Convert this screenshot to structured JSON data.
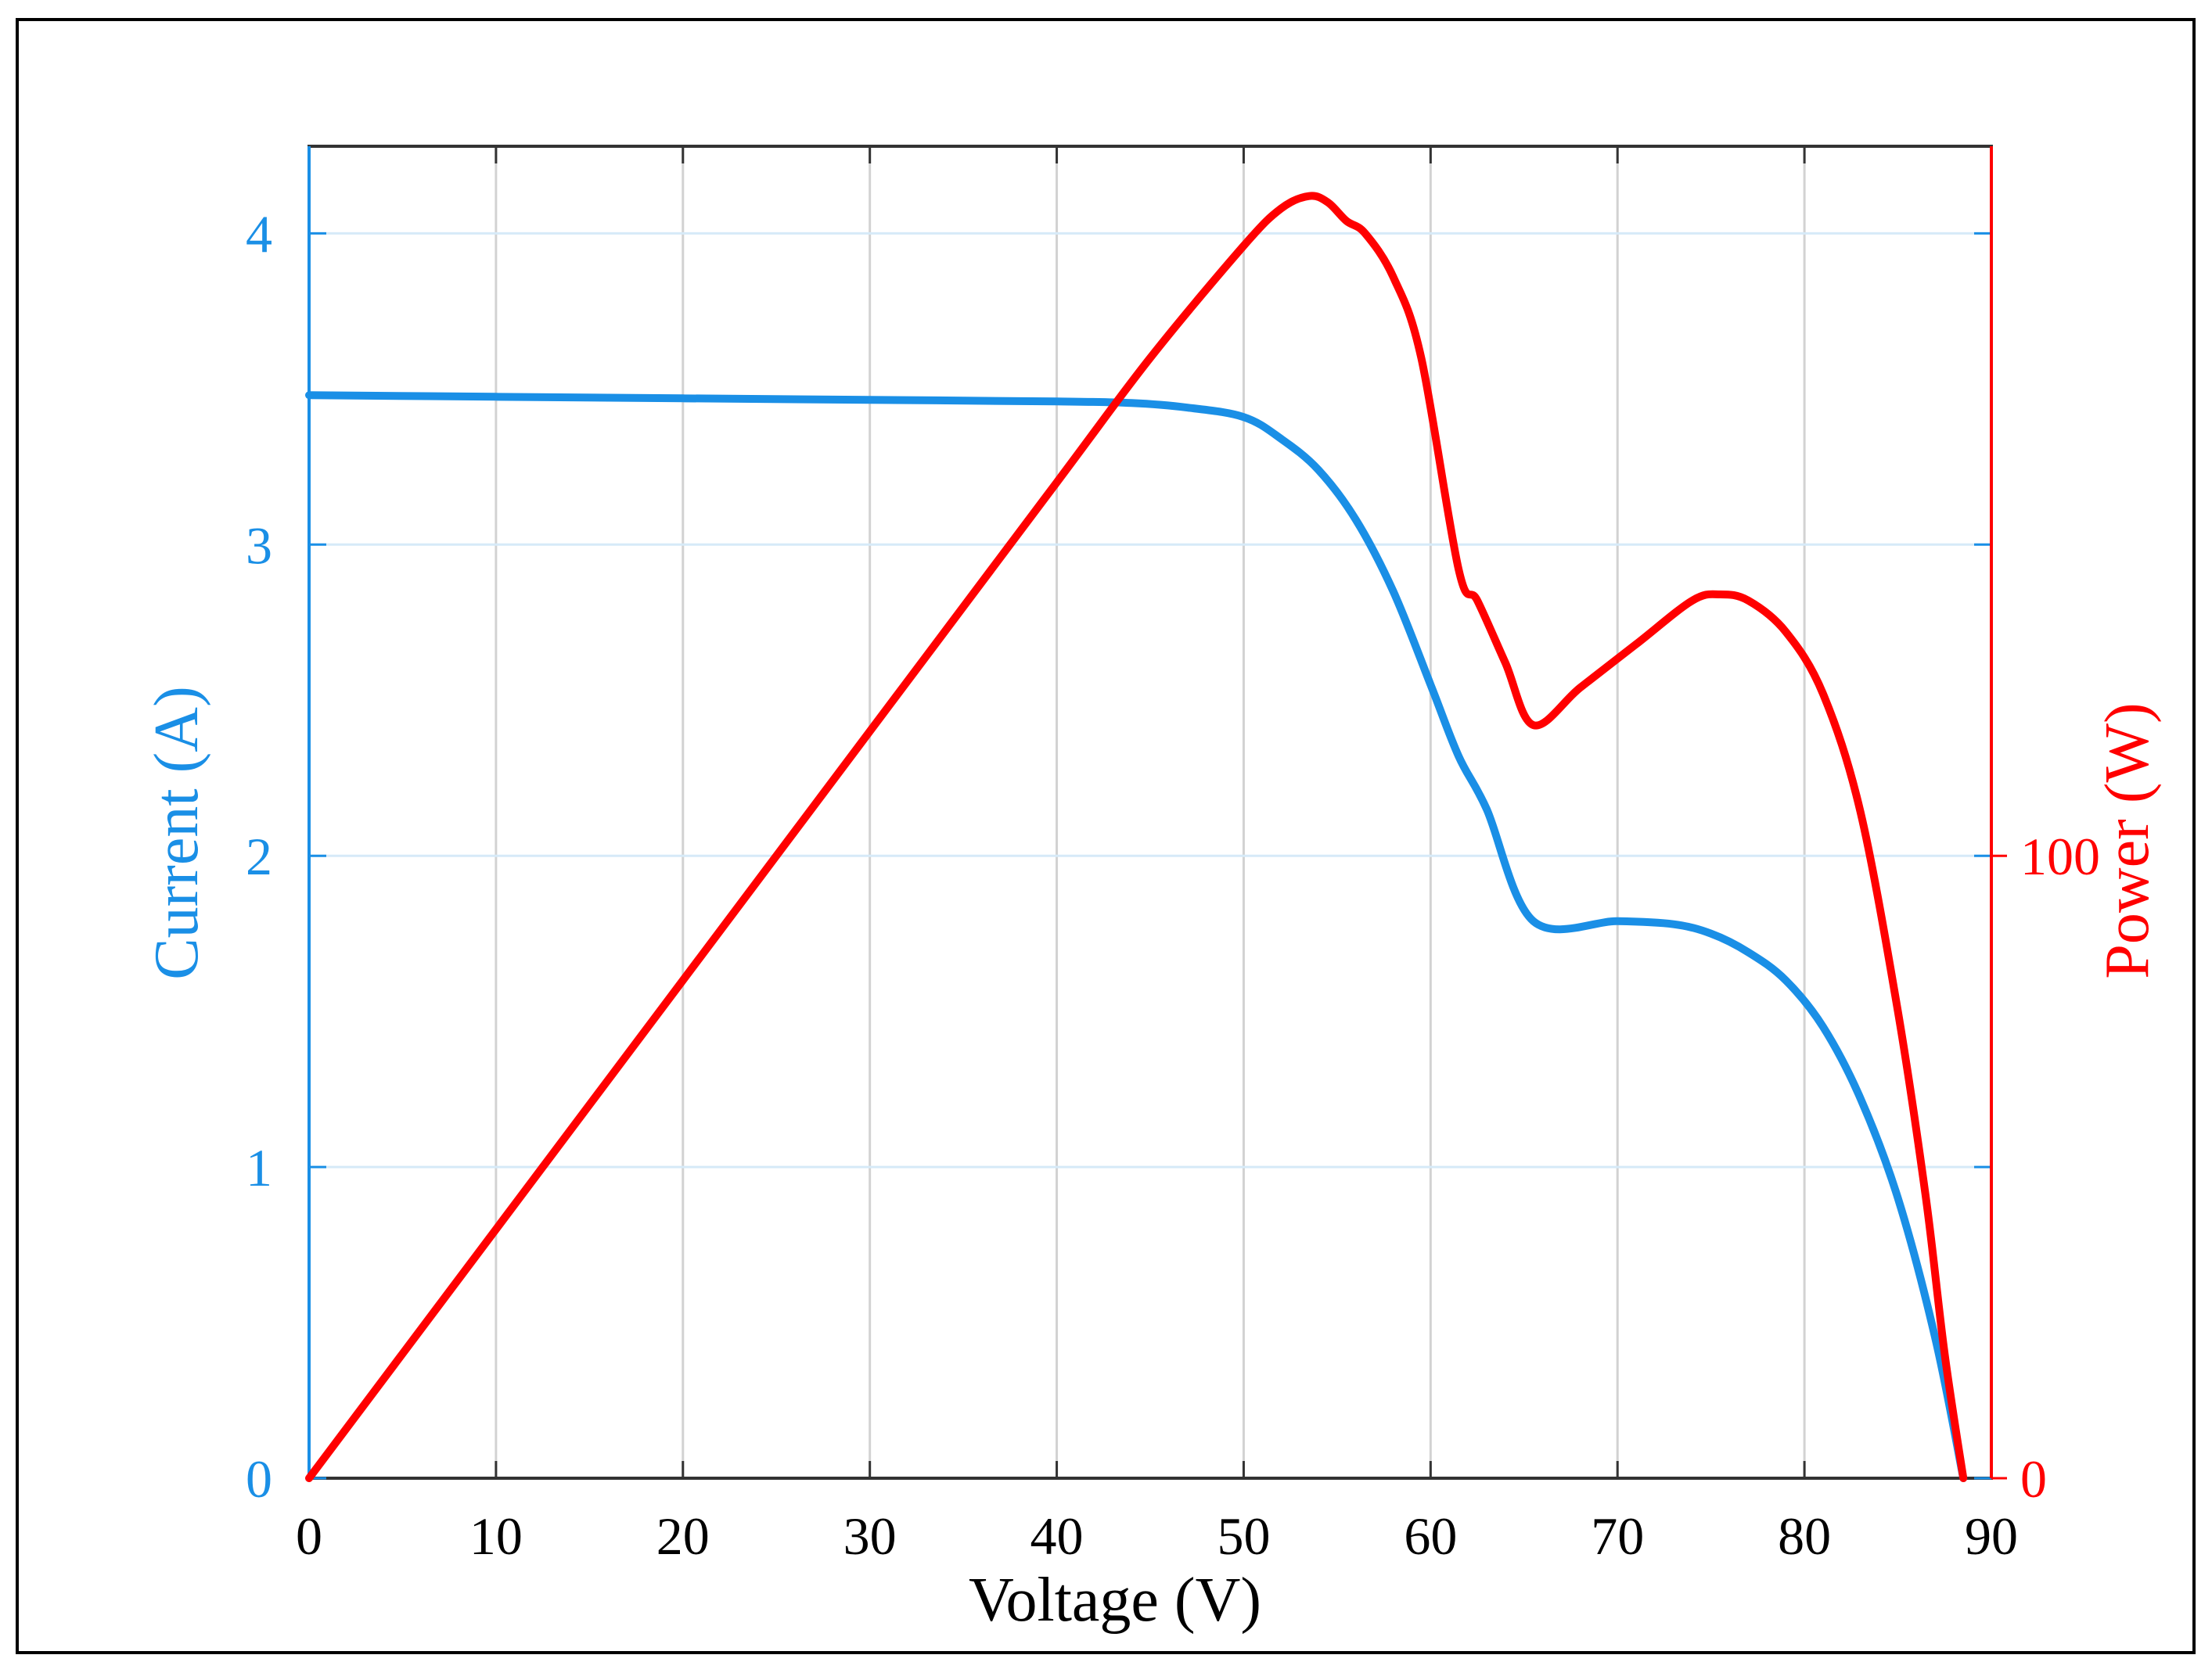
{
  "chart_data": {
    "type": "line",
    "title": "",
    "xlabel": "Voltage (V)",
    "ylabel": "Current (A)",
    "y2label": "Power (W)",
    "xlim": [
      0,
      90
    ],
    "ylim": [
      0,
      4.28
    ],
    "y2lim": [
      0,
      214
    ],
    "x_ticks": [
      "0",
      "10",
      "20",
      "30",
      "40",
      "50",
      "60",
      "70",
      "80",
      "90"
    ],
    "y_ticks": [
      "0",
      "1",
      "2",
      "3",
      "4"
    ],
    "y2_ticks": [
      "0",
      "100"
    ],
    "grid": true,
    "legend": "none",
    "colors": {
      "current": "#1a8fe6",
      "power": "#ff0000",
      "grid": "#d2d2d2",
      "frame": "#333333",
      "x_text": "#000000"
    },
    "series": [
      {
        "name": "Current (A)",
        "axis": "left",
        "x": [
          0,
          10,
          20,
          30,
          40,
          44,
          47,
          50,
          52,
          54,
          56,
          58,
          60,
          61.5,
          63,
          65.5,
          70,
          73,
          75,
          77,
          79,
          81,
          83,
          85,
          87,
          88.5
        ],
        "y": [
          3.48,
          3.475,
          3.47,
          3.465,
          3.46,
          3.455,
          3.44,
          3.41,
          3.34,
          3.24,
          3.08,
          2.85,
          2.55,
          2.32,
          2.15,
          1.79,
          1.79,
          1.78,
          1.75,
          1.69,
          1.6,
          1.45,
          1.22,
          0.9,
          0.45,
          0.0
        ]
      },
      {
        "name": "Power (W)",
        "axis": "right",
        "x": [
          0,
          10,
          20,
          30,
          40,
          45,
          50,
          52,
          53.5,
          54.5,
          55.5,
          56.5,
          58,
          59.5,
          61.5,
          62.5,
          64,
          65.5,
          68,
          71,
          74,
          75.5,
          77,
          79,
          81,
          83,
          85,
          86.5,
          87.5,
          88.5
        ],
        "y": [
          0,
          40,
          80,
          120,
          160,
          180,
          198,
          204,
          206,
          205,
          202,
          200,
          193,
          180,
          146,
          141,
          131,
          121,
          127,
          134,
          141,
          142,
          141,
          136,
          126,
          107,
          75,
          45,
          20,
          0
        ]
      }
    ]
  }
}
